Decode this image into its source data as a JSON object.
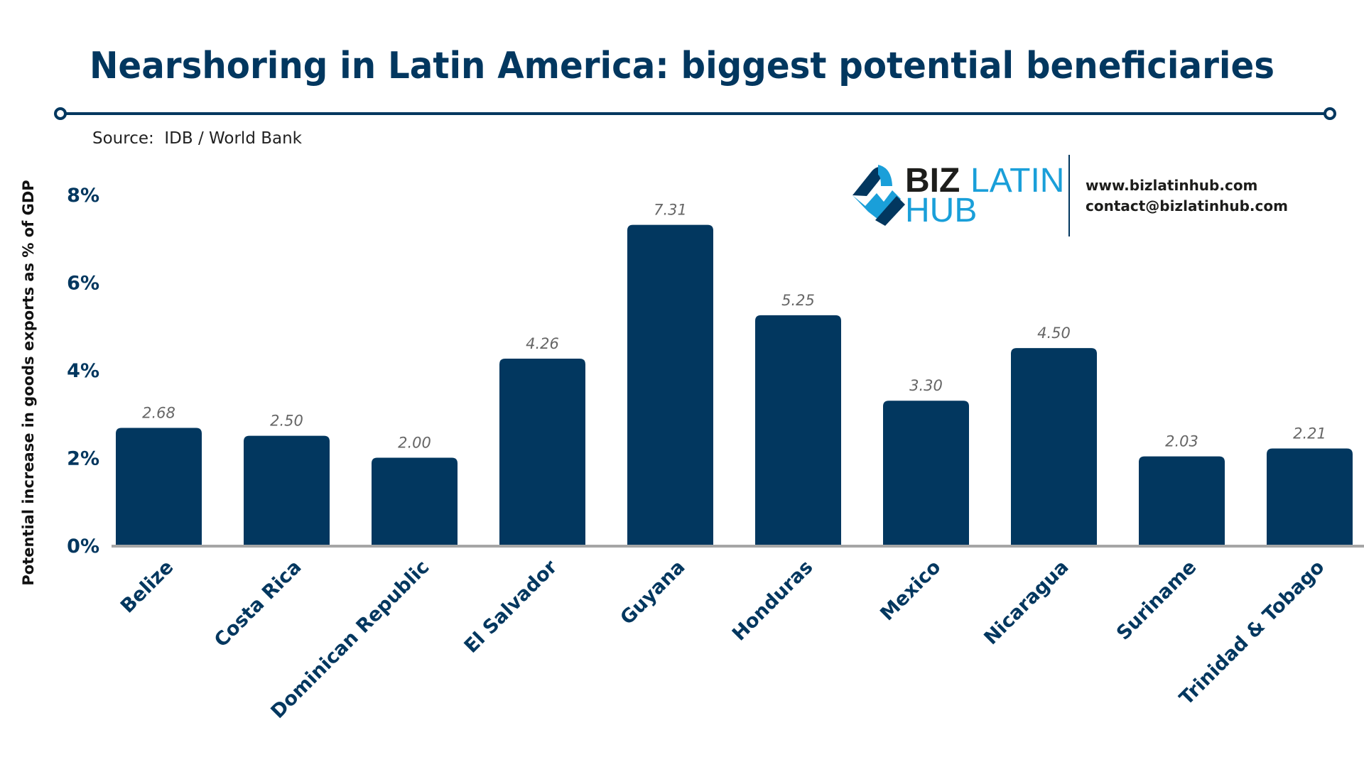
{
  "header": {
    "title": "Nearshoring in Latin America: biggest potential beneficiaries",
    "source": "Source:  IDB / World Bank"
  },
  "logo": {
    "text_biz": "BIZ",
    "text_latin": "LATIN",
    "text_hub": "HUB",
    "website": "www.bizlatinhub.com",
    "email": "contact@bizlatinhub.com"
  },
  "colors": {
    "bar": "#02375f",
    "title": "#02375f",
    "value_label": "#666666",
    "axis_line": "#a6a6a6",
    "logo_blue": "#1a9fd9"
  },
  "chart_data": {
    "type": "bar",
    "title": "Nearshoring in Latin America: biggest potential beneficiaries",
    "ylabel": "Potential increase in goods exports as % of GDP",
    "xlabel": "",
    "ylim": [
      0,
      8
    ],
    "yticks": [
      0,
      2,
      4,
      6,
      8
    ],
    "ytick_labels": [
      "0%",
      "2%",
      "4%",
      "6%",
      "8%"
    ],
    "grid": false,
    "categories": [
      "Belize",
      "Costa Rica",
      "Dominican Republic",
      "El Salvador",
      "Guyana",
      "Honduras",
      "Mexico",
      "Nicaragua",
      "Suriname",
      "Trinidad & Tobago"
    ],
    "values": [
      2.68,
      2.5,
      2.0,
      4.26,
      7.31,
      5.25,
      3.3,
      4.5,
      2.03,
      2.21
    ],
    "value_labels": [
      "2.68",
      "2.50",
      "2.00",
      "4.26",
      "7.31",
      "5.25",
      "3.30",
      "4.50",
      "2.03",
      "2.21"
    ]
  }
}
